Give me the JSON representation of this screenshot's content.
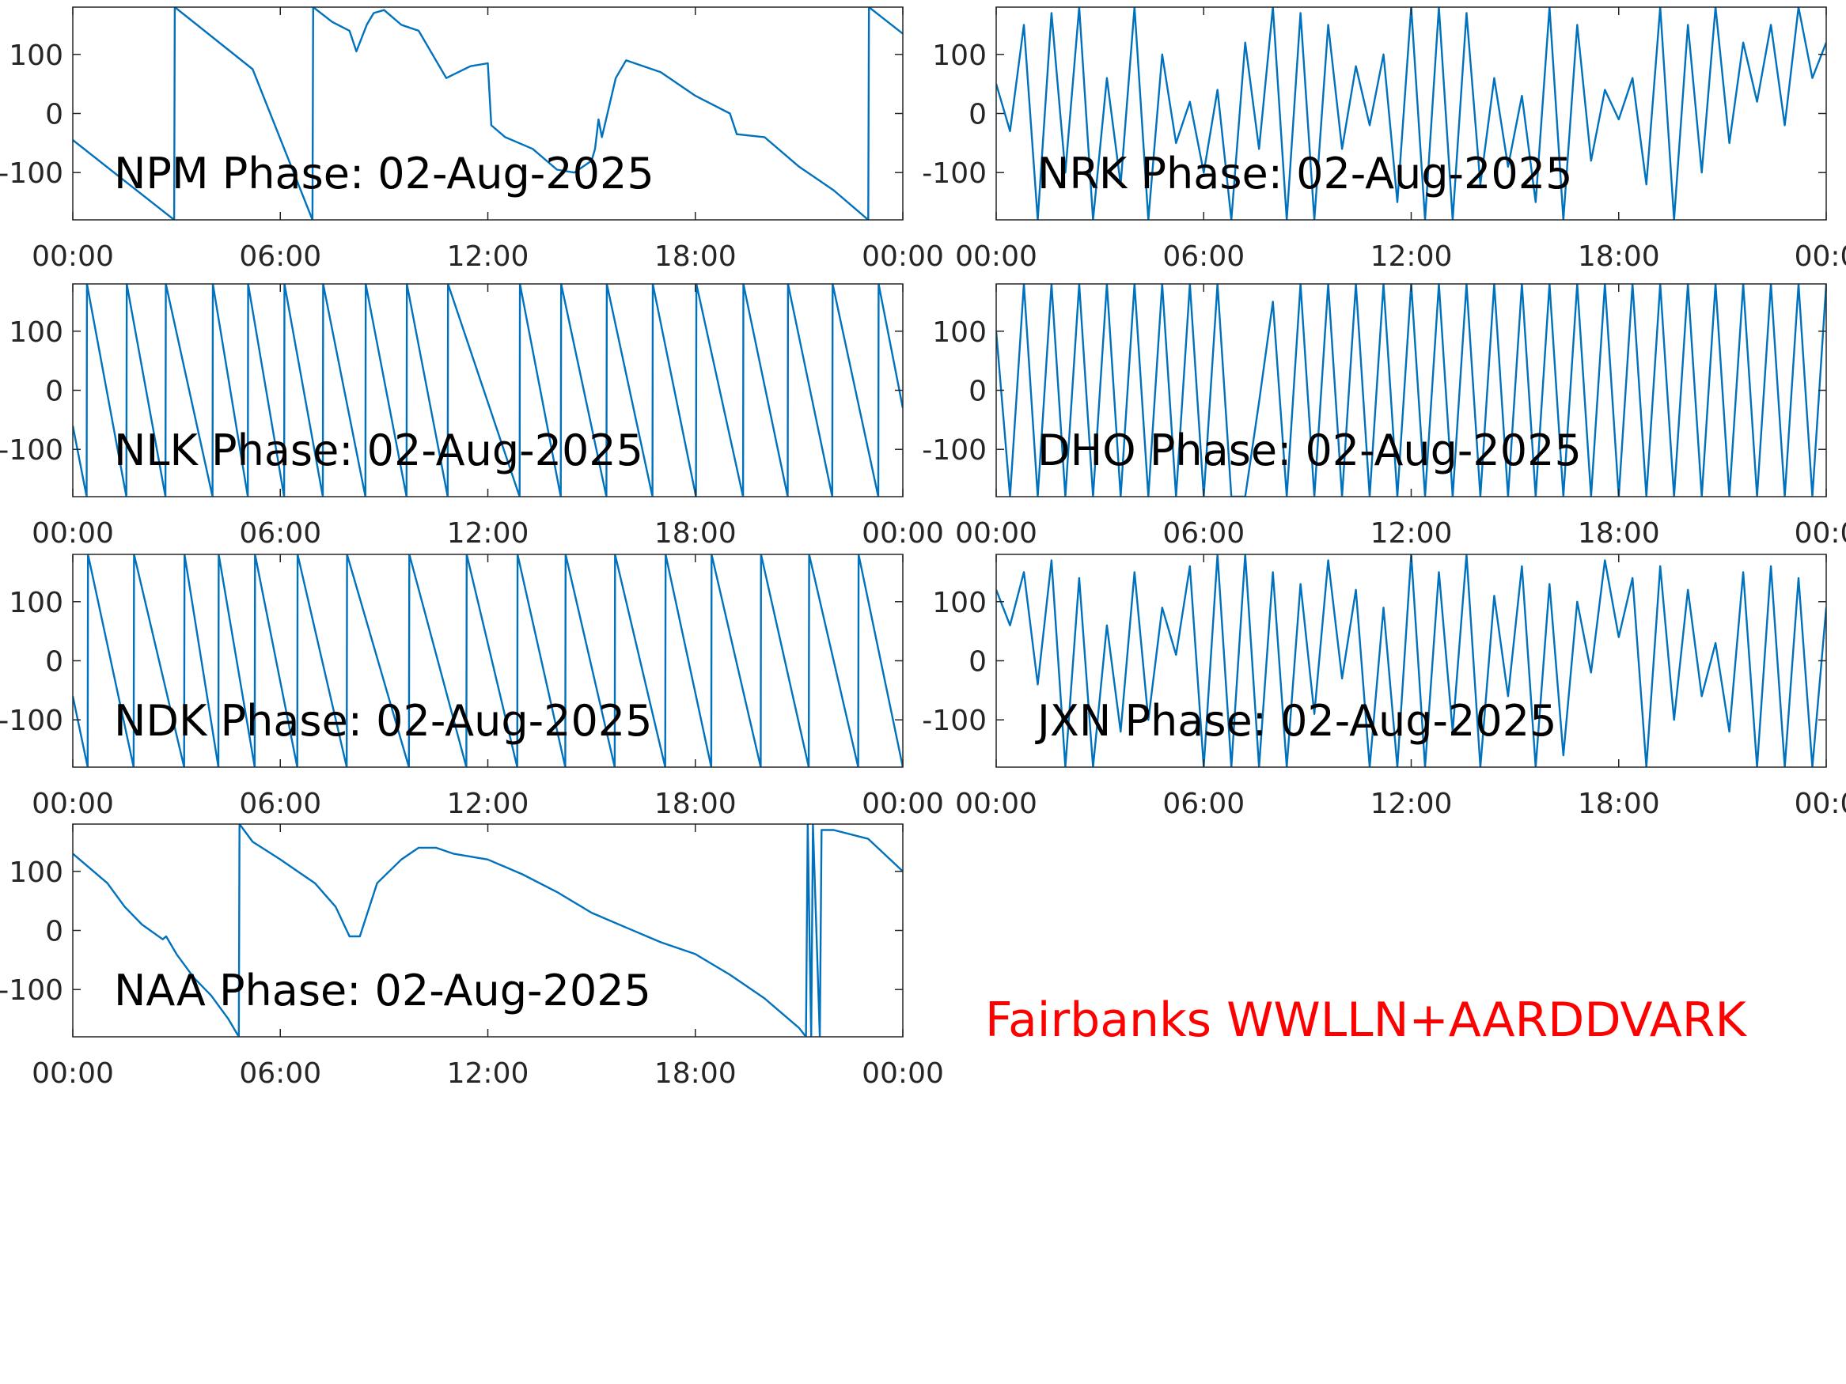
{
  "chart_data": [
    {
      "type": "line",
      "title": "NPM Phase: 02-Aug-2025",
      "color": "#0072bd",
      "x": [
        0,
        2.93,
        2.95,
        5.2,
        6.93,
        6.95,
        7.5,
        8,
        8.2,
        8.5,
        8.7,
        9,
        9.5,
        10,
        10.8,
        11.5,
        12,
        12.1,
        12.5,
        13.3,
        14,
        14.5,
        15,
        15.1,
        15.2,
        15.3,
        15.7,
        16,
        17,
        18,
        19,
        19.2,
        20,
        21,
        22,
        23,
        23.02,
        24
      ],
      "values": [
        -45,
        -180,
        180,
        75,
        -180,
        180,
        155,
        140,
        105,
        150,
        170,
        175,
        150,
        140,
        60,
        80,
        85,
        -20,
        -40,
        -60,
        -95,
        -100,
        -80,
        -60,
        -10,
        -40,
        60,
        90,
        70,
        30,
        0,
        -35,
        -40,
        -90,
        -130,
        -180,
        180,
        135
      ],
      "xlim": [
        0,
        24
      ],
      "xticks": [
        {
          "value": 0,
          "label": "00:00"
        },
        {
          "value": 6,
          "label": "06:00"
        },
        {
          "value": 12,
          "label": "12:00"
        },
        {
          "value": 18,
          "label": "18:00"
        },
        {
          "value": 24,
          "label": "00:00"
        }
      ],
      "ylim": [
        -180,
        180
      ],
      "yticks": [
        -100,
        0,
        100
      ]
    },
    {
      "type": "line",
      "title": "NRK Phase: 02-Aug-2025",
      "color": "#0072bd",
      "x": [
        0,
        0.4,
        0.8,
        1.2,
        1.6,
        2,
        2.4,
        2.8,
        3.2,
        3.6,
        4,
        4.4,
        4.8,
        5.2,
        5.6,
        6,
        6.4,
        6.8,
        7.2,
        7.6,
        8,
        8.4,
        8.8,
        9.2,
        9.6,
        10,
        10.4,
        10.8,
        11.2,
        11.6,
        12,
        12.4,
        12.8,
        13.2,
        13.6,
        14,
        14.4,
        14.8,
        15.2,
        15.6,
        16,
        16.4,
        16.8,
        17.2,
        17.6,
        18,
        18.4,
        18.8,
        19.2,
        19.6,
        20,
        20.4,
        20.8,
        21.2,
        21.6,
        22,
        22.4,
        22.8,
        23.2,
        23.6,
        24
      ],
      "values": [
        50,
        -30,
        150,
        -180,
        170,
        -100,
        180,
        -180,
        60,
        -120,
        180,
        -180,
        100,
        -50,
        20,
        -100,
        40,
        -180,
        120,
        -60,
        180,
        -180,
        170,
        -180,
        150,
        -60,
        80,
        -20,
        100,
        -150,
        180,
        -180,
        180,
        -180,
        170,
        -120,
        60,
        -90,
        30,
        -150,
        180,
        -180,
        150,
        -80,
        40,
        -10,
        60,
        -120,
        180,
        -180,
        150,
        -100,
        180,
        -50,
        120,
        20,
        150,
        -20,
        180,
        60,
        120
      ],
      "xlim": [
        0,
        24
      ],
      "xticks": [
        {
          "value": 0,
          "label": "00:00"
        },
        {
          "value": 6,
          "label": "06:00"
        },
        {
          "value": 12,
          "label": "12:00"
        },
        {
          "value": 18,
          "label": "18:00"
        },
        {
          "value": 24,
          "label": "00:0"
        }
      ],
      "ylim": [
        -180,
        180
      ],
      "yticks": [
        -100,
        0,
        100
      ]
    },
    {
      "type": "line",
      "title": "NLK Phase: 02-Aug-2025",
      "color": "#0072bd",
      "x": [
        0,
        0.4,
        0.41,
        1.55,
        1.56,
        2.68,
        2.69,
        4.04,
        4.05,
        5.06,
        5.07,
        6.11,
        6.12,
        7.23,
        7.24,
        8.46,
        8.47,
        9.65,
        9.66,
        10.84,
        10.85,
        12.92,
        12.93,
        14.11,
        14.12,
        15.43,
        15.44,
        16.76,
        16.77,
        18.02,
        18.03,
        19.38,
        19.39,
        20.67,
        20.68,
        21.96,
        21.97,
        23.29,
        23.3,
        24
      ],
      "values": [
        -60,
        -180,
        180,
        -180,
        180,
        -180,
        180,
        -180,
        180,
        -180,
        180,
        -180,
        180,
        -180,
        180,
        -180,
        180,
        -180,
        180,
        -180,
        180,
        -180,
        180,
        -180,
        180,
        -180,
        180,
        -180,
        180,
        -180,
        180,
        -180,
        180,
        -180,
        180,
        -180,
        180,
        -180,
        180,
        -30
      ],
      "xlim": [
        0,
        24
      ],
      "xticks": [
        {
          "value": 0,
          "label": "00:00"
        },
        {
          "value": 6,
          "label": "06:00"
        },
        {
          "value": 12,
          "label": "12:00"
        },
        {
          "value": 18,
          "label": "18:00"
        },
        {
          "value": 24,
          "label": "00:00"
        }
      ],
      "ylim": [
        -180,
        180
      ],
      "yticks": [
        -100,
        0,
        100
      ]
    },
    {
      "type": "line",
      "title": "DHO Phase: 02-Aug-2025",
      "color": "#0072bd",
      "x": [
        0,
        0.4,
        0.8,
        1.2,
        1.6,
        2,
        2.4,
        2.8,
        3.2,
        3.6,
        4,
        4.4,
        4.8,
        5.2,
        5.6,
        6,
        6.4,
        6.8,
        7.2,
        7.6,
        8,
        8.4,
        8.8,
        9.2,
        9.6,
        10,
        10.4,
        10.8,
        11.2,
        11.6,
        12,
        12.4,
        12.8,
        13.2,
        13.6,
        14,
        14.4,
        14.8,
        15.2,
        15.6,
        16,
        16.4,
        16.8,
        17.2,
        17.6,
        18,
        18.4,
        18.8,
        19.2,
        19.6,
        20,
        20.4,
        20.8,
        21.2,
        21.6,
        22,
        22.4,
        22.8,
        23.2,
        23.6,
        24
      ],
      "values": [
        100,
        -180,
        180,
        -180,
        180,
        -180,
        180,
        -180,
        180,
        -180,
        180,
        -180,
        180,
        -180,
        180,
        -180,
        180,
        -180,
        -180,
        -20,
        150,
        -180,
        180,
        -180,
        180,
        -180,
        180,
        -180,
        180,
        -180,
        180,
        -180,
        180,
        -180,
        180,
        -180,
        180,
        -180,
        180,
        -180,
        180,
        -180,
        180,
        -180,
        180,
        -180,
        180,
        -180,
        180,
        -180,
        180,
        -180,
        180,
        -180,
        180,
        -180,
        180,
        -180,
        180,
        -180,
        180
      ],
      "xlim": [
        0,
        24
      ],
      "xticks": [
        {
          "value": 0,
          "label": "00:00"
        },
        {
          "value": 6,
          "label": "06:00"
        },
        {
          "value": 12,
          "label": "12:00"
        },
        {
          "value": 18,
          "label": "18:00"
        },
        {
          "value": 24,
          "label": "00:0"
        }
      ],
      "ylim": [
        -180,
        180
      ],
      "yticks": [
        -100,
        0,
        100
      ]
    },
    {
      "type": "line",
      "title": "NDK Phase: 02-Aug-2025",
      "color": "#0072bd",
      "x": [
        0,
        0.43,
        0.44,
        1.76,
        1.77,
        3.22,
        3.23,
        4.21,
        4.22,
        5.26,
        5.27,
        6.49,
        6.5,
        7.92,
        7.93,
        9.72,
        9.73,
        11.38,
        11.39,
        12.85,
        12.86,
        14.24,
        14.25,
        15.67,
        15.68,
        17.13,
        17.14,
        18.46,
        18.47,
        19.89,
        19.9,
        21.28,
        21.29,
        22.71,
        22.72,
        24
      ],
      "values": [
        -60,
        -180,
        180,
        -180,
        180,
        -180,
        180,
        -180,
        180,
        -180,
        180,
        -180,
        180,
        -180,
        180,
        -180,
        180,
        -180,
        180,
        -180,
        180,
        -180,
        180,
        -180,
        180,
        -180,
        180,
        -180,
        180,
        -180,
        180,
        -180,
        180,
        -180,
        180,
        -180
      ],
      "xlim": [
        0,
        24
      ],
      "xticks": [
        {
          "value": 0,
          "label": "00:00"
        },
        {
          "value": 6,
          "label": "06:00"
        },
        {
          "value": 12,
          "label": "12:00"
        },
        {
          "value": 18,
          "label": "18:00"
        },
        {
          "value": 24,
          "label": "00:00"
        }
      ],
      "ylim": [
        -180,
        180
      ],
      "yticks": [
        -100,
        0,
        100
      ]
    },
    {
      "type": "line",
      "title": "JXN Phase: 02-Aug-2025",
      "color": "#0072bd",
      "x": [
        0,
        0.4,
        0.8,
        1.2,
        1.6,
        2,
        2.4,
        2.8,
        3.2,
        3.6,
        4,
        4.4,
        4.8,
        5.2,
        5.6,
        6,
        6.4,
        6.8,
        7.2,
        7.6,
        8,
        8.4,
        8.8,
        9.2,
        9.6,
        10,
        10.4,
        10.8,
        11.2,
        11.6,
        12,
        12.4,
        12.8,
        13.2,
        13.6,
        14,
        14.4,
        14.8,
        15.2,
        15.6,
        16,
        16.4,
        16.8,
        17.2,
        17.6,
        18,
        18.4,
        18.8,
        19.2,
        19.6,
        20,
        20.4,
        20.8,
        21.2,
        21.6,
        22,
        22.4,
        22.8,
        23.2,
        23.6,
        24
      ],
      "values": [
        120,
        60,
        150,
        -40,
        170,
        -180,
        140,
        -180,
        60,
        -120,
        150,
        -100,
        90,
        10,
        160,
        -180,
        180,
        -180,
        180,
        -180,
        150,
        -180,
        130,
        -90,
        170,
        -30,
        120,
        -180,
        90,
        -180,
        180,
        -180,
        150,
        -120,
        180,
        -180,
        110,
        -60,
        160,
        -180,
        130,
        -160,
        100,
        -20,
        170,
        40,
        140,
        -180,
        160,
        -100,
        120,
        -60,
        30,
        -120,
        150,
        -180,
        160,
        -180,
        140,
        -180,
        90
      ],
      "xlim": [
        0,
        24
      ],
      "xticks": [
        {
          "value": 0,
          "label": "00:00"
        },
        {
          "value": 6,
          "label": "06:00"
        },
        {
          "value": 12,
          "label": "12:00"
        },
        {
          "value": 18,
          "label": "18:00"
        },
        {
          "value": 24,
          "label": "00:0"
        }
      ],
      "ylim": [
        -180,
        180
      ],
      "yticks": [
        -100,
        0,
        100
      ]
    },
    {
      "type": "line",
      "title": "NAA Phase: 02-Aug-2025",
      "color": "#0072bd",
      "x": [
        0,
        1,
        1.5,
        2,
        2.6,
        2.7,
        3,
        3.5,
        4,
        4.5,
        4.8,
        4.82,
        5.2,
        6,
        6.5,
        7,
        7.3,
        7.6,
        8,
        8.3,
        8.8,
        9.5,
        10,
        10.5,
        11,
        12,
        13,
        14,
        15,
        16,
        17,
        18,
        19,
        20,
        21,
        21.2,
        21.25,
        21.35,
        21.4,
        21.6,
        21.65,
        22,
        23,
        24
      ],
      "values": [
        130,
        80,
        40,
        10,
        -15,
        -10,
        -40,
        -80,
        -110,
        -150,
        -180,
        180,
        150,
        120,
        100,
        80,
        60,
        40,
        -10,
        -10,
        80,
        120,
        140,
        140,
        130,
        120,
        95,
        65,
        30,
        5,
        -20,
        -40,
        -75,
        -115,
        -165,
        -180,
        180,
        -180,
        180,
        -180,
        170,
        170,
        155,
        100
      ],
      "xlim": [
        0,
        24
      ],
      "xticks": [
        {
          "value": 0,
          "label": "00:00"
        },
        {
          "value": 6,
          "label": "06:00"
        },
        {
          "value": 12,
          "label": "12:00"
        },
        {
          "value": 18,
          "label": "18:00"
        },
        {
          "value": 24,
          "label": "00:00"
        }
      ],
      "ylim": [
        -180,
        180
      ],
      "yticks": [
        -100,
        0,
        100
      ]
    }
  ],
  "annotation": "Fairbanks WWLLN+AARDDVARK"
}
